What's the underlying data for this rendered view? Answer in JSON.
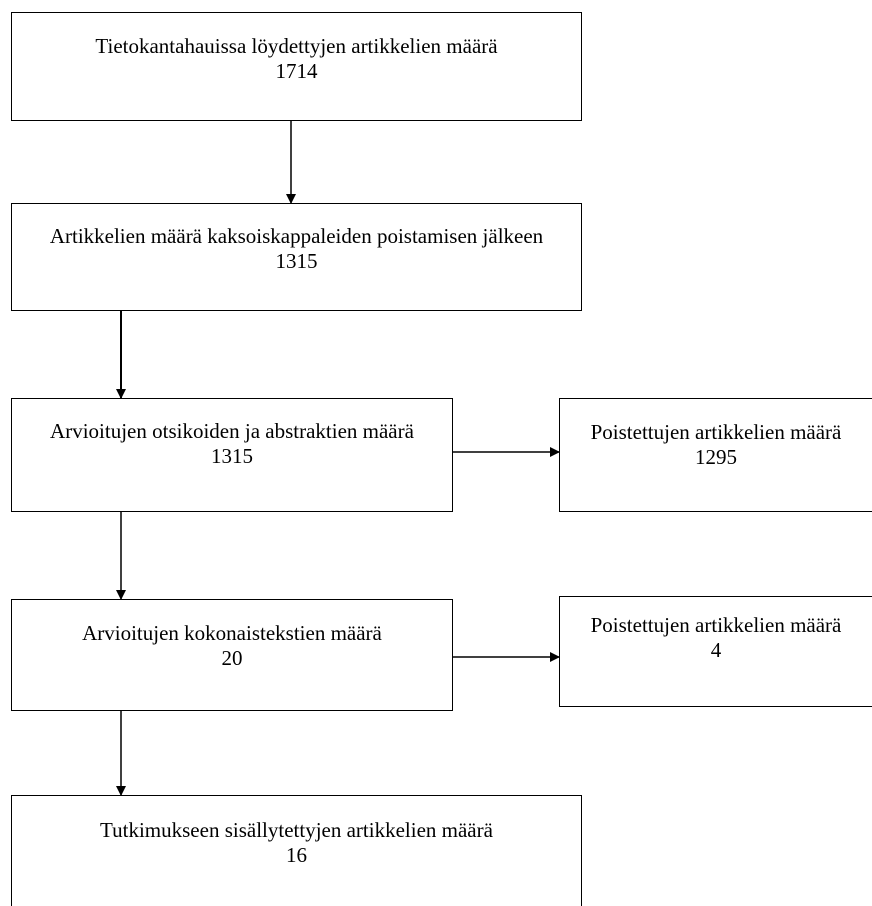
{
  "flow": {
    "step1": {
      "label": "Tietokantahauissa löydettyjen artikkelien määrä",
      "count": "1714"
    },
    "step2": {
      "label": "Artikkelien määrä kaksoiskappaleiden poistamisen jälkeen",
      "count": "1315"
    },
    "step3": {
      "label": "Arvioitujen otsikoiden ja abstraktien määrä",
      "count": "1315"
    },
    "excluded1": {
      "label": "Poistettujen artikkelien määrä",
      "count": "1295"
    },
    "step4": {
      "label": "Arvioitujen kokonaistekstien määrä",
      "count": "20"
    },
    "excluded2": {
      "label": "Poistettujen artikkelien määrä",
      "count": "4"
    },
    "step5": {
      "label": "Tutkimukseen sisällytettyjen artikkelien määrä",
      "count": "16"
    }
  }
}
